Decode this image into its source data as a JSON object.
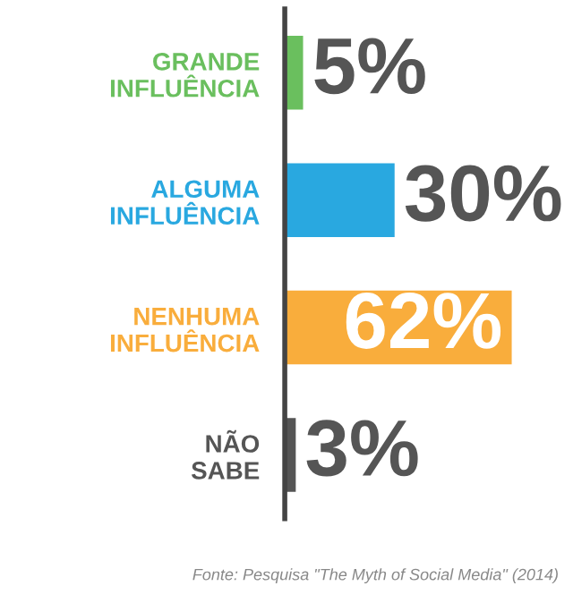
{
  "chart_data": {
    "type": "bar",
    "orientation": "horizontal",
    "categories": [
      "GRANDE\nINFLUÊNCIA",
      "ALGUMA\nINFLUÊNCIA",
      "NENHUMA\nINFLUÊNCIA",
      "NÃO\nSABE"
    ],
    "values": [
      5,
      30,
      62,
      3
    ],
    "colors": [
      "#6abf5e",
      "#29a8e0",
      "#f9ad3c",
      "#555555"
    ],
    "value_labels": [
      "5%",
      "30%",
      "62%",
      "3%"
    ],
    "annotations": [
      "Fonte: Pesquisa \"The Myth of Social Media\" (2014)"
    ]
  }
}
